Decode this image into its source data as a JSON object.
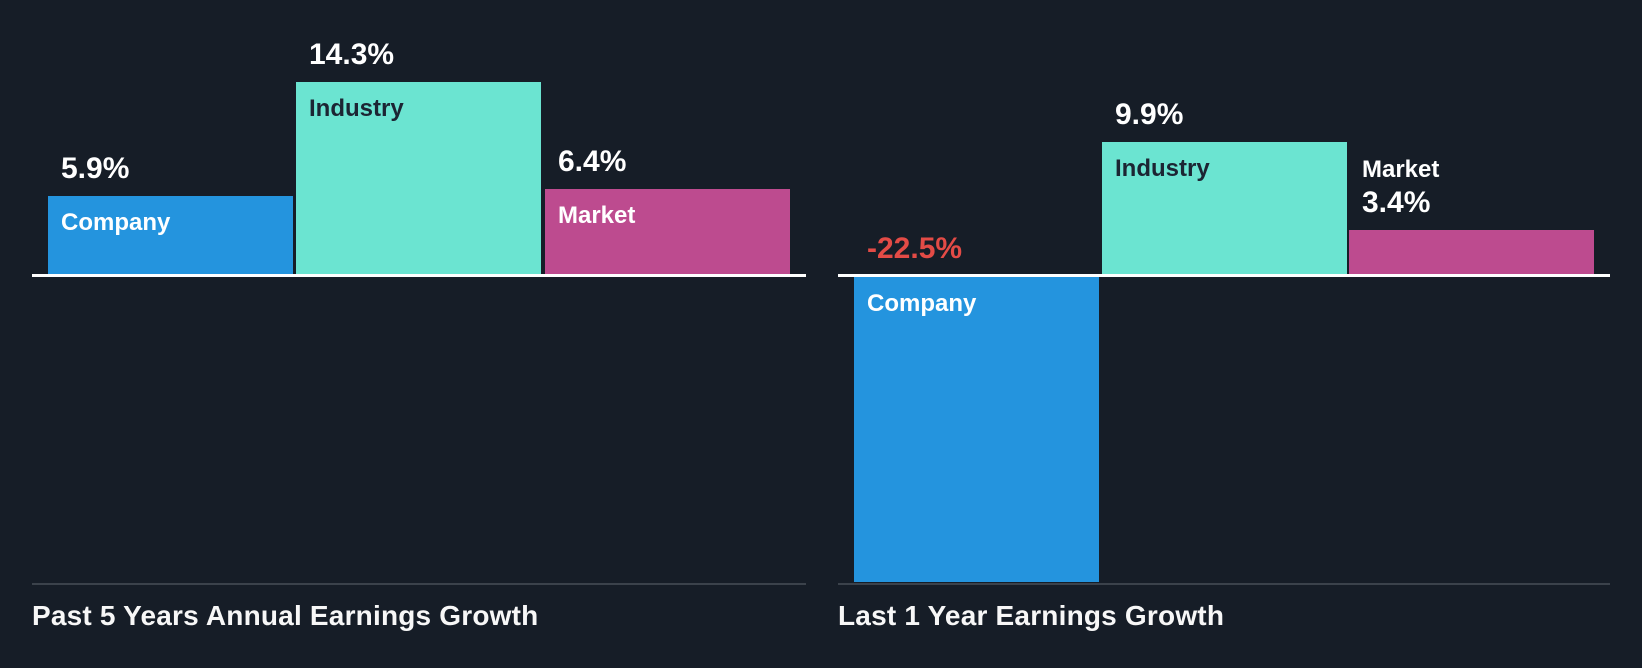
{
  "page": {
    "background_color": "#161D27"
  },
  "colors": {
    "series": {
      "Company": "#2494DE",
      "Industry": "#6BE4D1",
      "Market": "#BD4B8F"
    },
    "bar_label_colors": {
      "Company": "#FFFFFF",
      "Industry": "#1C2533",
      "Market": "#FFFFFF"
    },
    "value_positive": "#FFFFFF",
    "value_negative": "#E34B46",
    "axis_line": "#FFFFFF",
    "divider_line": "#3B424B",
    "title_text": "#F7F7F7"
  },
  "chart_data": [
    {
      "type": "bar",
      "title": "Past 5 Years Annual Earnings Growth",
      "categories": [
        "Company",
        "Industry",
        "Market"
      ],
      "values": [
        5.9,
        14.3,
        6.4
      ],
      "value_labels": [
        "5.9%",
        "14.3%",
        "6.4%"
      ],
      "unit": "%",
      "baseline": 0,
      "ylim": [
        0,
        15
      ],
      "grid": false,
      "legend_position": "labels-inside-bars"
    },
    {
      "type": "bar",
      "title": "Last 1 Year Earnings Growth",
      "categories": [
        "Company",
        "Industry",
        "Market"
      ],
      "values": [
        -22.5,
        9.9,
        3.4
      ],
      "value_labels": [
        "-22.5%",
        "9.9%",
        "3.4%"
      ],
      "unit": "%",
      "baseline": 0,
      "ylim": [
        -23,
        10
      ],
      "grid": false,
      "legend_position": "labels-inside-bars"
    }
  ]
}
